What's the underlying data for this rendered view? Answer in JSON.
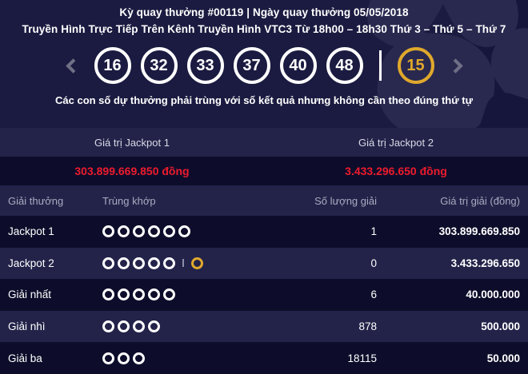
{
  "hero": {
    "draw_info": "Kỳ quay thưởng #00119 | Ngày quay thưởng 05/05/2018",
    "broadcast_info": "Truyền Hình Trực Tiếp Trên Kênh Truyền Hình VTC3 Từ 18h00 – 18h30 Thứ 3 – Thứ 5 – Thứ 7",
    "numbers": [
      "16",
      "32",
      "33",
      "37",
      "40",
      "48"
    ],
    "bonus_number": "15",
    "note": "Các con số dự thưởng phải trùng với số kết quả nhưng không cần theo đúng thứ tự"
  },
  "icons": {
    "prev": "chevron-left",
    "next": "chevron-right",
    "white_match": "white-ring",
    "gold_match": "gold-ring"
  },
  "jackpots": [
    {
      "label": "Giá trị Jackpot 1",
      "value": "303.899.669.850 đồng"
    },
    {
      "label": "Giá trị Jackpot 2",
      "value": "3.433.296.650 đồng"
    }
  ],
  "table": {
    "headers": {
      "prize": "Giải thưởng",
      "match": "Trùng khớp",
      "count": "Số lượng giải",
      "value": "Giá trị giải (đồng)"
    },
    "rows": [
      {
        "prize": "Jackpot 1",
        "white_balls": 6,
        "gold_balls": 0,
        "count": "1",
        "value": "303.899.669.850"
      },
      {
        "prize": "Jackpot 2",
        "white_balls": 5,
        "gold_balls": 1,
        "count": "0",
        "value": "3.433.296.650"
      },
      {
        "prize": "Giải nhất",
        "white_balls": 5,
        "gold_balls": 0,
        "count": "6",
        "value": "40.000.000"
      },
      {
        "prize": "Giải nhì",
        "white_balls": 4,
        "gold_balls": 0,
        "count": "878",
        "value": "500.000"
      },
      {
        "prize": "Giải ba",
        "white_balls": 3,
        "gold_balls": 0,
        "count": "18115",
        "value": "50.000"
      }
    ]
  },
  "colors": {
    "background": "#1b1b41",
    "panel_dark": "#0d0d2b",
    "panel_mid": "#23234a",
    "watermark": "#292950",
    "watermark_dark": "#16163c",
    "accent_gold": "#e0a82c",
    "value_red": "#ee1b2d",
    "text_white": "#ffffff",
    "text_muted": "#a9abbf",
    "text_soft": "#d8d9e4",
    "chevron_gray": "#6f7086"
  }
}
